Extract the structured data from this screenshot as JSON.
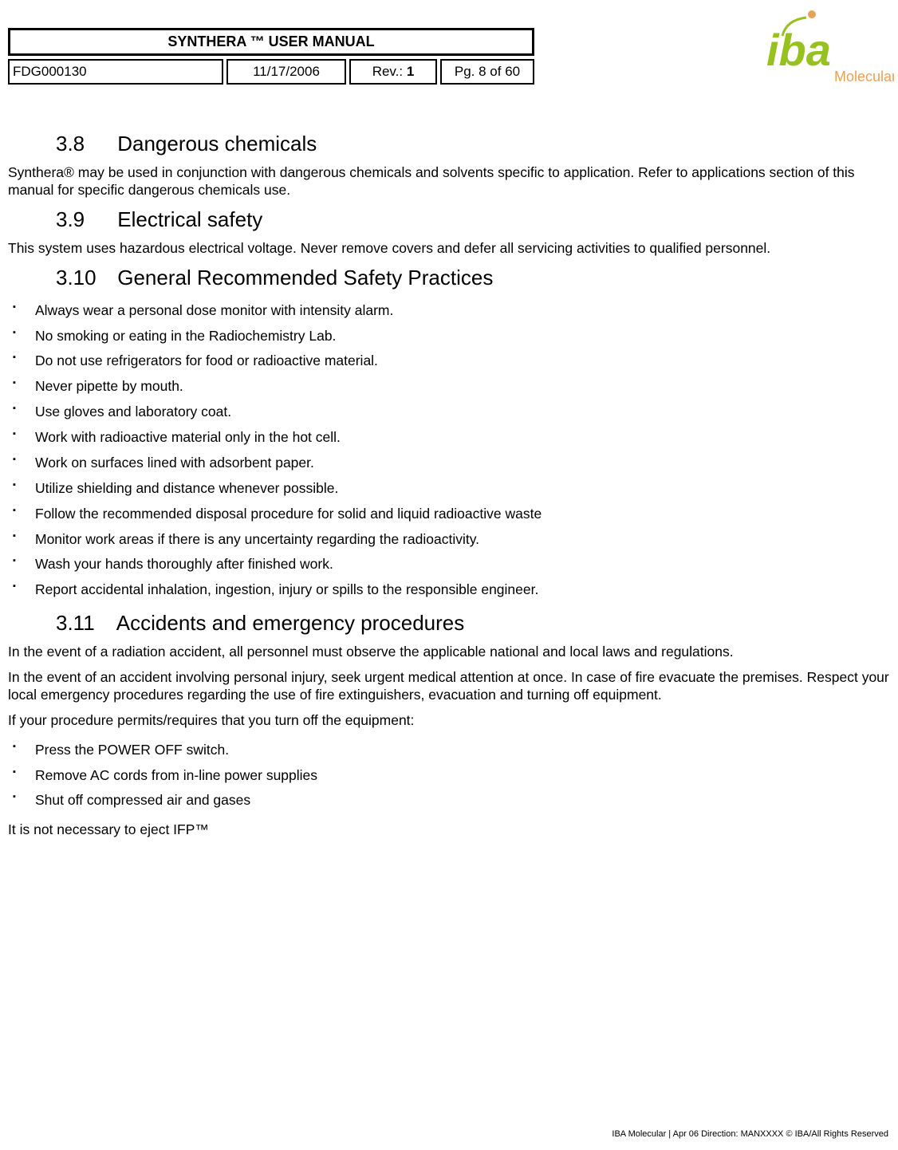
{
  "header": {
    "title": "SYNTHERA ™ USER MANUAL",
    "doc_id": "FDG000130",
    "date": "11/17/2006",
    "rev_label": "Rev.: ",
    "rev_value": "1",
    "page": "Pg. 8 of 60",
    "logo_text_main": "iba",
    "logo_text_sub": "Molecular",
    "logo_color_green": "#97c11f",
    "logo_color_orange": "#e8a158"
  },
  "sections": [
    {
      "number": "3.8",
      "title": "Dangerous chemicals",
      "paragraphs": [
        "Synthera® may be used in conjunction with dangerous chemicals and solvents specific to application. Refer to applications section of this manual for specific dangerous chemicals use."
      ],
      "bullets": []
    },
    {
      "number": "3.9",
      "title": "Electrical safety",
      "paragraphs": [
        "This system uses hazardous electrical voltage.  Never remove covers and defer all servicing activities to qualified personnel."
      ],
      "bullets": []
    },
    {
      "number": "3.10",
      "title": "General Recommended Safety Practices",
      "paragraphs": [],
      "bullets": [
        "Always wear a personal dose monitor with intensity alarm.",
        "No smoking or eating in the Radiochemistry Lab.",
        "Do not use refrigerators for food or radioactive material.",
        "Never pipette by mouth.",
        "Use gloves and laboratory coat.",
        "Work with radioactive material only in the hot cell.",
        "Work on surfaces lined with adsorbent paper.",
        "Utilize shielding and distance whenever possible.",
        "Follow the recommended disposal procedure for solid and liquid radioactive waste",
        "Monitor work areas if there is any uncertainty regarding the radioactivity.",
        "Wash your hands thoroughly after finished work.",
        "Report accidental inhalation, ingestion, injury or spills to the responsible engineer."
      ]
    },
    {
      "number": "3.11",
      "title": "Accidents and emergency procedures",
      "paragraphs": [
        "In the event of a radiation accident, all personnel must observe the applicable national and local laws and regulations.",
        "In the event of an accident involving personal injury, seek urgent medical attention at once.  In case of fire evacuate the premises. Respect your local emergency procedures regarding the use of fire extinguishers, evacuation and turning off equipment.",
        "If your procedure permits/requires that you turn off the equipment:"
      ],
      "bullets": [
        "Press the POWER OFF switch.",
        "Remove AC cords from in-line power supplies",
        "Shut off compressed air and gases"
      ],
      "after_paragraphs": [
        "It is not necessary to eject IFP™"
      ]
    }
  ],
  "footer": "IBA Molecular  |  Apr 06 Direction: MANXXXX © IBA/All Rights Reserved"
}
